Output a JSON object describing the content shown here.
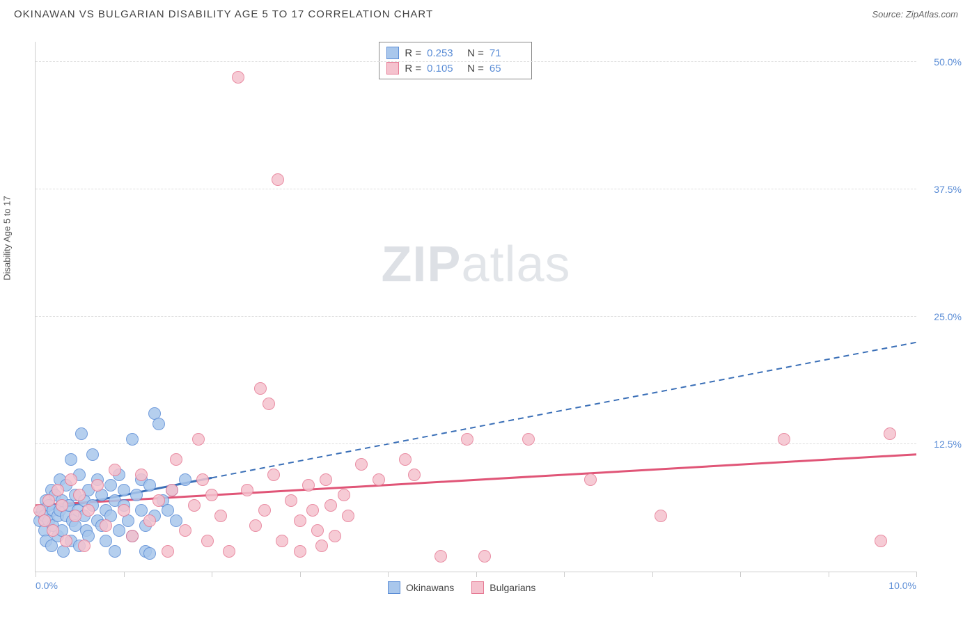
{
  "title": "OKINAWAN VS BULGARIAN DISABILITY AGE 5 TO 17 CORRELATION CHART",
  "source": "Source: ZipAtlas.com",
  "watermark_bold": "ZIP",
  "watermark_light": "atlas",
  "y_axis_label": "Disability Age 5 to 17",
  "chart": {
    "type": "scatter",
    "xlim": [
      0,
      10
    ],
    "ylim": [
      0,
      52
    ],
    "x_ticks": [
      0,
      1,
      2,
      3,
      4,
      5,
      6,
      7,
      8,
      9,
      10
    ],
    "x_tick_labels": {
      "0": "0.0%",
      "10": "10.0%"
    },
    "y_gridlines": [
      12.5,
      25.0,
      37.5,
      50.0
    ],
    "y_tick_labels": [
      "12.5%",
      "25.0%",
      "37.5%",
      "50.0%"
    ],
    "grid_color": "#dddddd",
    "axis_color": "#cccccc",
    "label_color": "#5b8dd6",
    "background_color": "#ffffff",
    "marker_radius": 9,
    "marker_stroke_width": 1.5,
    "marker_fill_opacity": 0.25,
    "series": [
      {
        "name": "Okinawans",
        "color_fill": "#a9c7ec",
        "color_stroke": "#5b8dd6",
        "R": "0.253",
        "N": "71",
        "trend_solid": {
          "x1": 0,
          "y1": 5.8,
          "x2": 2.0,
          "y2": 9.2
        },
        "trend_dash": {
          "x1": 2.0,
          "y1": 9.2,
          "x2": 10.0,
          "y2": 22.5
        },
        "trend_color": "#3a6fb7",
        "points": [
          [
            0.05,
            5.0
          ],
          [
            0.08,
            6.0
          ],
          [
            0.1,
            5.5
          ],
          [
            0.1,
            4.0
          ],
          [
            0.12,
            7.0
          ],
          [
            0.12,
            3.0
          ],
          [
            0.15,
            6.5
          ],
          [
            0.15,
            5.0
          ],
          [
            0.18,
            8.0
          ],
          [
            0.18,
            2.5
          ],
          [
            0.2,
            6.0
          ],
          [
            0.2,
            4.5
          ],
          [
            0.22,
            7.5
          ],
          [
            0.25,
            5.5
          ],
          [
            0.25,
            3.5
          ],
          [
            0.28,
            6.0
          ],
          [
            0.28,
            9.0
          ],
          [
            0.3,
            4.0
          ],
          [
            0.3,
            7.0
          ],
          [
            0.32,
            2.0
          ],
          [
            0.35,
            5.5
          ],
          [
            0.35,
            8.5
          ],
          [
            0.38,
            6.5
          ],
          [
            0.4,
            3.0
          ],
          [
            0.4,
            11.0
          ],
          [
            0.42,
            5.0
          ],
          [
            0.45,
            7.5
          ],
          [
            0.45,
            4.5
          ],
          [
            0.48,
            6.0
          ],
          [
            0.5,
            9.5
          ],
          [
            0.5,
            2.5
          ],
          [
            0.52,
            13.5
          ],
          [
            0.55,
            5.5
          ],
          [
            0.55,
            7.0
          ],
          [
            0.58,
            4.0
          ],
          [
            0.6,
            8.0
          ],
          [
            0.6,
            3.5
          ],
          [
            0.65,
            6.5
          ],
          [
            0.65,
            11.5
          ],
          [
            0.7,
            5.0
          ],
          [
            0.7,
            9.0
          ],
          [
            0.75,
            4.5
          ],
          [
            0.75,
            7.5
          ],
          [
            0.8,
            6.0
          ],
          [
            0.8,
            3.0
          ],
          [
            0.85,
            8.5
          ],
          [
            0.85,
            5.5
          ],
          [
            0.9,
            7.0
          ],
          [
            0.9,
            2.0
          ],
          [
            0.95,
            9.5
          ],
          [
            0.95,
            4.0
          ],
          [
            1.0,
            6.5
          ],
          [
            1.0,
            8.0
          ],
          [
            1.05,
            5.0
          ],
          [
            1.1,
            13.0
          ],
          [
            1.1,
            3.5
          ],
          [
            1.15,
            7.5
          ],
          [
            1.2,
            6.0
          ],
          [
            1.2,
            9.0
          ],
          [
            1.25,
            4.5
          ],
          [
            1.25,
            2.0
          ],
          [
            1.3,
            1.8
          ],
          [
            1.3,
            8.5
          ],
          [
            1.35,
            15.5
          ],
          [
            1.35,
            5.5
          ],
          [
            1.4,
            14.5
          ],
          [
            1.45,
            7.0
          ],
          [
            1.5,
            6.0
          ],
          [
            1.55,
            8.0
          ],
          [
            1.6,
            5.0
          ],
          [
            1.7,
            9.0
          ]
        ]
      },
      {
        "name": "Bulgarians",
        "color_fill": "#f5c2ce",
        "color_stroke": "#e67a94",
        "R": "0.105",
        "N": "65",
        "trend_solid": {
          "x1": 0,
          "y1": 6.5,
          "x2": 10.0,
          "y2": 11.5
        },
        "trend_dash": null,
        "trend_color": "#e05577",
        "points": [
          [
            0.05,
            6.0
          ],
          [
            0.1,
            5.0
          ],
          [
            0.15,
            7.0
          ],
          [
            0.2,
            4.0
          ],
          [
            0.25,
            8.0
          ],
          [
            0.3,
            6.5
          ],
          [
            0.35,
            3.0
          ],
          [
            0.4,
            9.0
          ],
          [
            0.45,
            5.5
          ],
          [
            0.5,
            7.5
          ],
          [
            0.55,
            2.5
          ],
          [
            0.6,
            6.0
          ],
          [
            0.7,
            8.5
          ],
          [
            0.8,
            4.5
          ],
          [
            0.9,
            10.0
          ],
          [
            1.0,
            6.0
          ],
          [
            1.1,
            3.5
          ],
          [
            1.2,
            9.5
          ],
          [
            1.3,
            5.0
          ],
          [
            1.4,
            7.0
          ],
          [
            1.5,
            2.0
          ],
          [
            1.55,
            8.0
          ],
          [
            1.6,
            11.0
          ],
          [
            1.7,
            4.0
          ],
          [
            1.8,
            6.5
          ],
          [
            1.85,
            13.0
          ],
          [
            1.9,
            9.0
          ],
          [
            1.95,
            3.0
          ],
          [
            2.0,
            7.5
          ],
          [
            2.1,
            5.5
          ],
          [
            2.2,
            2.0
          ],
          [
            2.3,
            48.5
          ],
          [
            2.4,
            8.0
          ],
          [
            2.5,
            4.5
          ],
          [
            2.55,
            18.0
          ],
          [
            2.6,
            6.0
          ],
          [
            2.65,
            16.5
          ],
          [
            2.7,
            9.5
          ],
          [
            2.75,
            38.5
          ],
          [
            2.8,
            3.0
          ],
          [
            2.9,
            7.0
          ],
          [
            3.0,
            5.0
          ],
          [
            3.0,
            2.0
          ],
          [
            3.1,
            8.5
          ],
          [
            3.15,
            6.0
          ],
          [
            3.2,
            4.0
          ],
          [
            3.25,
            2.5
          ],
          [
            3.3,
            9.0
          ],
          [
            3.35,
            6.5
          ],
          [
            3.4,
            3.5
          ],
          [
            3.5,
            7.5
          ],
          [
            3.55,
            5.5
          ],
          [
            3.7,
            10.5
          ],
          [
            3.9,
            9.0
          ],
          [
            4.2,
            11.0
          ],
          [
            4.3,
            9.5
          ],
          [
            4.6,
            1.5
          ],
          [
            4.9,
            13.0
          ],
          [
            5.1,
            1.5
          ],
          [
            5.6,
            13.0
          ],
          [
            6.3,
            9.0
          ],
          [
            7.1,
            5.5
          ],
          [
            8.5,
            13.0
          ],
          [
            9.6,
            3.0
          ],
          [
            9.7,
            13.5
          ]
        ]
      }
    ]
  },
  "legend_labels": [
    "Okinawans",
    "Bulgarians"
  ]
}
